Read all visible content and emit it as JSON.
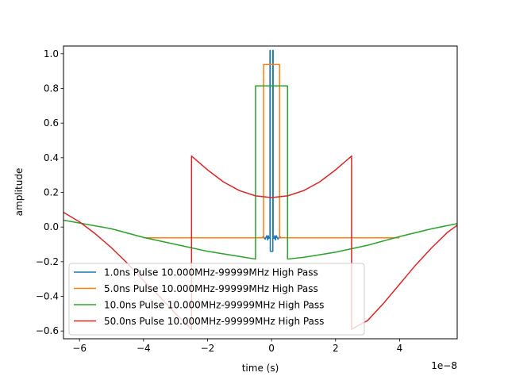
{
  "chart_data": {
    "type": "line",
    "title": "",
    "xlabel": "time (s)",
    "ylabel": "amplitude",
    "x_offset_label": "1e−8",
    "xlim": [
      -6.5,
      5.8
    ],
    "ylim": [
      -0.645,
      1.045
    ],
    "x_unit_scale": 1e-08,
    "xticks": [
      -6,
      -4,
      -2,
      0,
      2,
      4
    ],
    "xtick_labels": [
      "−6",
      "−4",
      "−2",
      "0",
      "2",
      "4"
    ],
    "yticks": [
      -0.6,
      -0.4,
      -0.2,
      0.0,
      0.2,
      0.4,
      0.6,
      0.8,
      1.0
    ],
    "ytick_labels": [
      "−0.6",
      "−0.4",
      "−0.2",
      "0.0",
      "0.2",
      "0.4",
      "0.6",
      "0.8",
      "1.0"
    ],
    "grid": false,
    "legend_position": "lower-left",
    "series": [
      {
        "name": "1.0ns Pulse 10.000MHz-99999MHz High Pass",
        "color": "#1f77b4",
        "x": [
          -0.8,
          -0.3,
          -0.25,
          -0.2,
          -0.15,
          -0.12,
          -0.1,
          -0.08,
          -0.05,
          -0.05,
          -0.04,
          -0.04,
          0.04,
          0.04,
          0.05,
          0.05,
          0.08,
          0.1,
          0.12,
          0.15,
          0.2,
          0.25,
          0.3,
          0.8
        ],
        "y": [
          -0.062,
          -0.062,
          -0.055,
          -0.07,
          -0.05,
          -0.075,
          -0.05,
          -0.065,
          -0.062,
          1.02,
          1.02,
          -0.14,
          -0.14,
          1.02,
          1.02,
          -0.062,
          -0.065,
          -0.05,
          -0.075,
          -0.05,
          -0.07,
          -0.055,
          -0.062,
          -0.062
        ]
      },
      {
        "name": "5.0ns Pulse 10.000MHz-99999MHz High Pass",
        "color": "#ff7f0e",
        "x": [
          -4.0,
          -0.25,
          -0.25,
          0.25,
          0.25,
          4.0
        ],
        "y": [
          -0.062,
          -0.062,
          0.938,
          0.938,
          -0.062,
          -0.062
        ]
      },
      {
        "name": "10.0ns Pulse 10.000MHz-99999MHz High Pass",
        "color": "#2ca02c",
        "x": [
          -6.5,
          -5.0,
          -4.0,
          -3.0,
          -2.0,
          -1.0,
          -0.5,
          -0.5,
          0.5,
          0.5,
          1.0,
          2.0,
          3.0,
          4.0,
          5.0,
          5.8
        ],
        "y": [
          0.04,
          -0.01,
          -0.06,
          -0.1,
          -0.14,
          -0.17,
          -0.185,
          0.815,
          0.815,
          -0.185,
          -0.175,
          -0.145,
          -0.105,
          -0.055,
          -0.01,
          0.02
        ]
      },
      {
        "name": "50.0ns Pulse 10.000MHz-99999MHz High Pass",
        "color": "#d62728",
        "x": [
          -6.5,
          -6.0,
          -5.5,
          -5.0,
          -4.5,
          -4.0,
          -3.5,
          -3.0,
          -2.5,
          -2.5,
          -2.0,
          -1.5,
          -1.0,
          -0.5,
          0.0,
          0.5,
          1.0,
          1.5,
          2.0,
          2.5,
          2.5,
          3.0,
          3.5,
          4.0,
          4.5,
          5.0,
          5.5,
          5.8
        ],
        "y": [
          0.085,
          0.03,
          -0.04,
          -0.12,
          -0.21,
          -0.31,
          -0.4,
          -0.5,
          -0.59,
          0.41,
          0.33,
          0.26,
          0.21,
          0.18,
          0.17,
          0.18,
          0.21,
          0.26,
          0.33,
          0.41,
          -0.59,
          -0.54,
          -0.44,
          -0.33,
          -0.22,
          -0.12,
          -0.03,
          0.01
        ]
      }
    ]
  }
}
